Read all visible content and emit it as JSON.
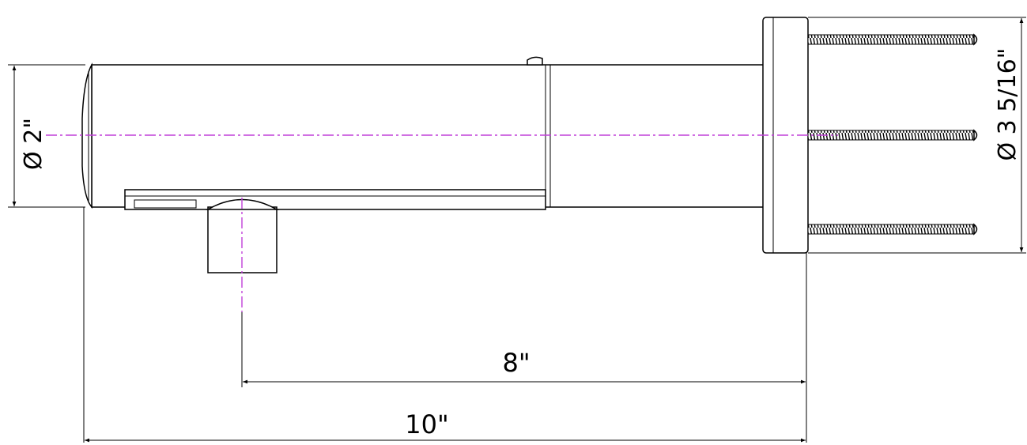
{
  "drawing": {
    "dimensions": {
      "spout_diameter": "Ø 2\"",
      "flange_diameter": "Ø 3 5/16\"",
      "outlet_to_wall": "8\"",
      "overall_length": "10\""
    },
    "colors": {
      "line": "#000000",
      "centerline": "#c040d8",
      "background": "#ffffff"
    }
  }
}
